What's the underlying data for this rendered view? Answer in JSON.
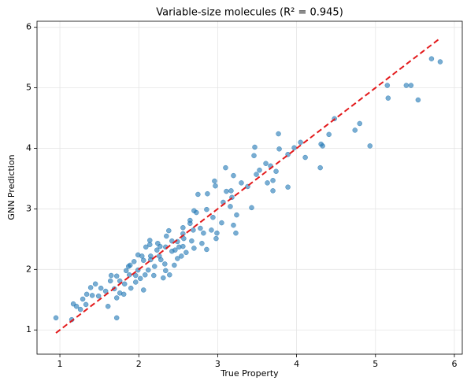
{
  "chart_data": {
    "type": "scatter",
    "title": "Variable-size molecules (R² = 0.945)",
    "x_label": "True Property",
    "y_label": "GNN Prediction",
    "color": "#1f77b4",
    "grid": true,
    "xlim": [
      0.71,
      6.1
    ],
    "ylim": [
      0.6,
      6.1
    ],
    "xticks": [
      1,
      2,
      3,
      4,
      5,
      6
    ],
    "yticks": [
      1,
      2,
      3,
      4,
      5,
      6
    ],
    "diagonal": {
      "x": [
        0.95,
        5.82
      ],
      "y": [
        0.95,
        5.82
      ],
      "color": "#e31a1c"
    },
    "x": [
      0.95,
      1.72,
      5.82,
      5.71,
      5.15,
      5.16,
      5.39,
      5.45,
      5.54,
      4.93,
      4.8,
      4.74,
      4.48,
      4.41,
      4.3,
      4.31,
      4.33,
      4.11,
      4.05,
      3.97,
      3.89,
      3.78,
      3.77,
      3.89,
      3.74,
      3.47,
      3.46,
      3.67,
      3.61,
      3.53,
      3.49,
      3.7,
      3.7,
      3.63,
      3.43,
      3.38,
      3.3,
      3.2,
      3.1,
      3.17,
      3.11,
      3.07,
      3.16,
      3.18,
      3.24,
      3.23,
      3.2,
      3.05,
      2.99,
      2.98,
      2.94,
      2.86,
      2.87,
      2.75,
      2.73,
      2.7,
      2.65,
      2.96,
      2.97,
      2.92,
      2.82,
      2.78,
      2.69,
      2.56,
      2.65,
      2.57,
      2.56,
      2.56,
      2.67,
      2.54,
      2.51,
      2.49,
      2.42,
      2.38,
      2.35,
      2.34,
      2.24,
      2.23,
      2.14,
      2.14,
      2.26,
      2.28,
      2.33,
      2.34,
      2.2,
      2.15,
      2.06,
      2.04,
      1.99,
      1.94,
      1.89,
      1.87,
      1.84,
      1.88,
      1.96,
      2.02,
      1.96,
      1.9,
      1.82,
      1.76,
      1.72,
      1.65,
      1.64,
      1.69,
      1.76,
      1.81,
      1.72,
      1.61,
      1.58,
      1.52,
      1.45,
      1.39,
      1.49,
      1.41,
      1.34,
      1.29,
      1.26,
      1.17,
      1.21,
      1.15,
      1.33,
      2.12,
      2.08,
      2.19,
      2.31,
      2.39,
      2.45,
      2.49,
      2.6,
      2.7,
      2.8,
      2.86,
      2.46,
      2.42,
      2.27,
      2.09,
      1.99,
      2.06,
      2.15
    ],
    "values": [
      1.2,
      1.2,
      5.43,
      5.48,
      5.04,
      4.83,
      5.04,
      5.04,
      4.8,
      4.04,
      4.41,
      4.3,
      4.49,
      4.23,
      3.68,
      4.07,
      4.04,
      3.85,
      4.1,
      4.01,
      3.9,
      3.99,
      4.24,
      3.36,
      3.62,
      4.02,
      3.88,
      3.71,
      3.75,
      3.64,
      3.57,
      3.3,
      3.47,
      3.43,
      3.02,
      3.37,
      3.43,
      3.55,
      3.68,
      3.3,
      3.29,
      3.11,
      3.04,
      3.19,
      2.9,
      2.6,
      2.73,
      2.77,
      2.6,
      2.51,
      2.86,
      2.99,
      3.25,
      3.24,
      2.94,
      2.97,
      2.81,
      3.46,
      3.38,
      2.65,
      2.6,
      2.68,
      2.65,
      2.69,
      2.76,
      2.51,
      2.59,
      2.38,
      2.47,
      2.22,
      2.37,
      2.46,
      2.47,
      2.64,
      2.55,
      2.37,
      2.43,
      2.32,
      2.41,
      2.48,
      2.22,
      2.16,
      2.09,
      1.98,
      2.05,
      2.16,
      2.15,
      2.22,
      2.24,
      2.13,
      2.07,
      2.05,
      1.98,
      1.91,
      1.9,
      1.85,
      1.79,
      1.69,
      1.76,
      1.81,
      1.89,
      1.9,
      1.81,
      1.68,
      1.61,
      1.59,
      1.53,
      1.39,
      1.64,
      1.69,
      1.76,
      1.7,
      1.56,
      1.57,
      1.59,
      1.51,
      1.34,
      1.43,
      1.39,
      1.17,
      1.42,
      1.99,
      1.91,
      1.9,
      1.86,
      1.91,
      2.07,
      2.18,
      2.28,
      2.35,
      2.43,
      2.33,
      2.32,
      2.3,
      2.38,
      2.37,
      1.99,
      1.66,
      2.22
    ]
  }
}
